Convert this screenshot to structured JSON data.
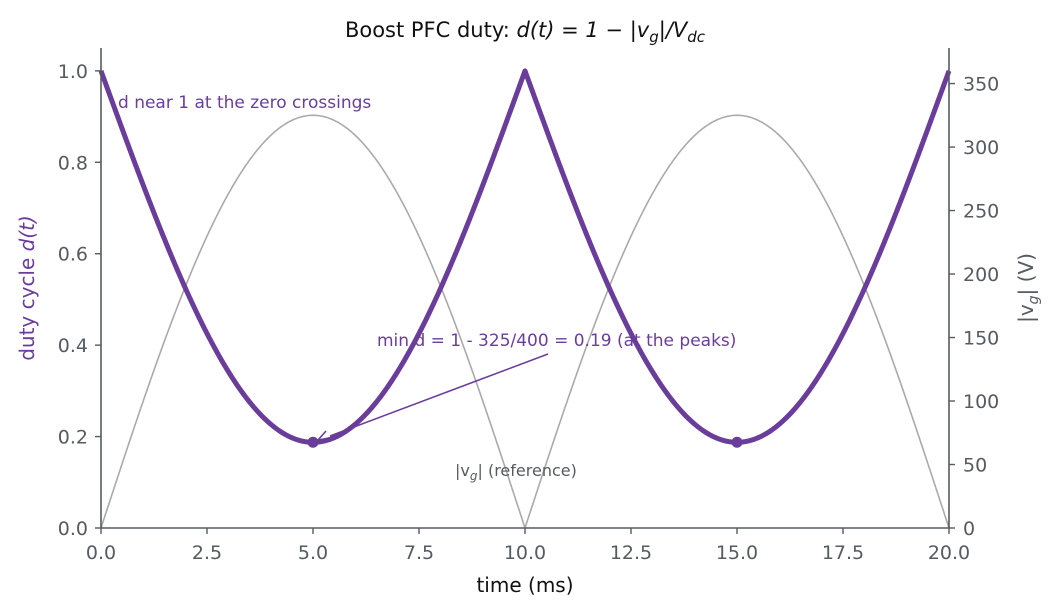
{
  "chart_data": {
    "type": "line",
    "title": "Boost PFC duty: d(t) = 1 − |v_g|/V_dc",
    "title_parts": {
      "lead": "Boost PFC duty: ",
      "math": "d(t) = 1 − |v",
      "sub1": "g",
      "mid": "|/V",
      "sub2": "dc"
    },
    "xlabel": "time  (ms)",
    "ylabel_left": "duty cycle  d(t)",
    "ylabel_left_parts": {
      "text": "duty cycle  ",
      "math": "d(t)"
    },
    "ylabel_right": "|v_g|  (V)",
    "ylabel_right_parts": {
      "pre": "|v",
      "sub": "g",
      "post": "|  (V)"
    },
    "xlim": [
      0,
      20
    ],
    "ylim_left": [
      0,
      1.05
    ],
    "ylim_right": [
      0,
      378
    ],
    "x_ticks": [
      "0.0",
      "2.5",
      "5.0",
      "7.5",
      "10.0",
      "12.5",
      "15.0",
      "17.5",
      "20.0"
    ],
    "y_left_ticks": [
      "0.0",
      "0.2",
      "0.4",
      "0.6",
      "0.8",
      "1.0"
    ],
    "y_right_ticks": [
      "0",
      "50",
      "100",
      "150",
      "200",
      "250",
      "300",
      "350"
    ],
    "line_frequency_hz": 50,
    "vg_peak_v": 325,
    "vdc_v": 400,
    "series": [
      {
        "name": "d(t)",
        "axis": "left",
        "color": "#6a3d9a",
        "formula": "1 - 325*|sin(2*pi*50*t)|/400"
      },
      {
        "name": "|v_g| (reference)",
        "axis": "right",
        "color": "#aaaaaa",
        "formula": "325*|sin(2*pi*50*t)|"
      }
    ],
    "markers": [
      {
        "x": 5.0,
        "y": 0.1875
      },
      {
        "x": 15.0,
        "y": 0.1875
      }
    ],
    "annotations": {
      "zero_crossing": "d near 1 at the zero crossings",
      "min_duty": "min d = 1 - 325/400 = 0.19  (at the peaks)",
      "reference_label": {
        "pre": "|v",
        "sub": "g",
        "post": "| (reference)"
      }
    },
    "colors": {
      "duty": "#6a3d9a",
      "reference": "#aaaaaa",
      "axis": "#555b60"
    },
    "grid": false
  }
}
